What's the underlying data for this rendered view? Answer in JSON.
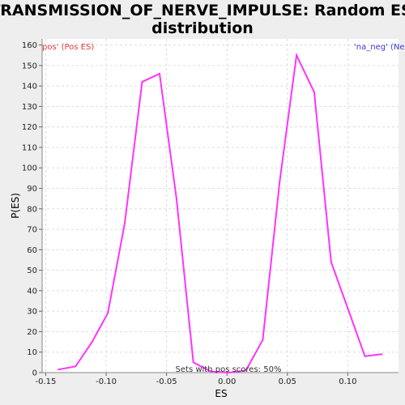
{
  "chart_data": {
    "type": "line",
    "title_lines": [
      "TRANSMISSION_OF_NERVE_IMPULSE: Random ES",
      "distribution"
    ],
    "xlabel": "ES",
    "ylabel": "P(ES)",
    "xlim": [
      -0.153,
      0.142
    ],
    "ylim": [
      0,
      163
    ],
    "x_ticks": [
      -0.15,
      -0.1,
      -0.05,
      0.0,
      0.05,
      0.1
    ],
    "x_tick_labels": [
      "-0.15",
      "-0.10",
      "-0.05",
      "0.00",
      "0.05",
      "0.10"
    ],
    "y_ticks": [
      0,
      10,
      20,
      30,
      40,
      50,
      60,
      70,
      80,
      90,
      100,
      110,
      120,
      130,
      140,
      150,
      160
    ],
    "y_tick_labels": [
      "0",
      "10",
      "20",
      "30",
      "40",
      "50",
      "60",
      "70",
      "80",
      "90",
      "100",
      "110",
      "120",
      "130",
      "140",
      "150",
      "160"
    ],
    "grid": true,
    "legend": {
      "pos_label": "pos' (Pos ES)",
      "neg_label": "'na_neg' (Ne",
      "pos_color": "#e23b3b",
      "neg_color": "#3b3bd6"
    },
    "annotation": "Sets with pos scores: 50%",
    "series": [
      {
        "color": "#ff33ff",
        "x": [
          -0.1396,
          -0.1254,
          -0.1116,
          -0.0986,
          -0.0846,
          -0.0702,
          -0.0558,
          -0.0418,
          -0.0278,
          -0.0132,
          0.0016,
          0.0156,
          0.0296,
          0.0436,
          0.0576,
          0.0722,
          0.0862,
          0.1002,
          0.1142,
          0.1282
        ],
        "y": [
          1.5,
          3,
          15,
          29,
          73,
          142,
          146,
          85,
          5,
          0.5,
          0,
          1,
          16,
          93,
          155,
          137,
          54,
          31,
          8,
          9
        ]
      }
    ]
  }
}
